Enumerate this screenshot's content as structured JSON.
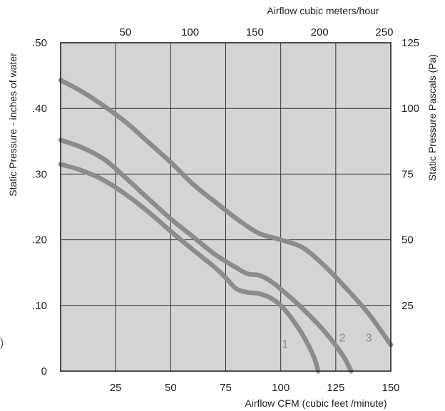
{
  "chart_data": {
    "type": "line",
    "title": "",
    "xlabel": "Airflow  CFM (cubic feet /minute)",
    "x2label": "Airflow cubic meters/hour",
    "ylabel": "Static Pressure - inches of water",
    "y2label": "Static Pressure Pascals (Pa)",
    "xlim": [
      0,
      150
    ],
    "ylim": [
      0,
      0.5
    ],
    "x2lim": [
      0,
      255
    ],
    "y2lim": [
      0,
      125
    ],
    "x_ticks": [
      "25",
      "50",
      "75",
      "100",
      "125",
      "150"
    ],
    "x_tick_values": [
      25,
      50,
      75,
      100,
      125,
      150
    ],
    "y_ticks": [
      "0",
      ".10",
      ".20",
      ".30",
      ".40",
      ".50"
    ],
    "y_tick_values": [
      0,
      0.1,
      0.2,
      0.3,
      0.4,
      0.5
    ],
    "x2_ticks": [
      "50",
      "100",
      "150",
      "200",
      "250"
    ],
    "x2_tick_values": [
      50,
      100,
      150,
      200,
      250
    ],
    "y2_ticks": [
      "25",
      "50",
      "75",
      "100",
      "125"
    ],
    "y2_tick_values": [
      25,
      50,
      75,
      100,
      125
    ],
    "grid": true,
    "background_color": "#d4d4d4",
    "line_color": "#8c8c8c",
    "series": [
      {
        "label": "1",
        "label_pos": [
          102,
          0.035
        ],
        "x": [
          0,
          10,
          20,
          30,
          40,
          50,
          60,
          70,
          75,
          80,
          85,
          90,
          95,
          100,
          105,
          110,
          115,
          117
        ],
        "y": [
          0.315,
          0.305,
          0.29,
          0.268,
          0.242,
          0.213,
          0.185,
          0.158,
          0.142,
          0.125,
          0.12,
          0.118,
          0.112,
          0.1,
          0.08,
          0.055,
          0.022,
          0
        ]
      },
      {
        "label": "2",
        "label_pos": [
          128,
          0.045
        ],
        "x": [
          0,
          10,
          20,
          30,
          40,
          50,
          60,
          70,
          80,
          85,
          90,
          95,
          100,
          110,
          120,
          128,
          132
        ],
        "y": [
          0.352,
          0.34,
          0.322,
          0.293,
          0.262,
          0.232,
          0.205,
          0.178,
          0.157,
          0.148,
          0.146,
          0.138,
          0.125,
          0.095,
          0.06,
          0.025,
          0
        ]
      },
      {
        "label": "3",
        "label_pos": [
          140,
          0.045
        ],
        "x": [
          0,
          10,
          20,
          30,
          40,
          50,
          60,
          70,
          80,
          90,
          100,
          110,
          120,
          130,
          140,
          150
        ],
        "y": [
          0.443,
          0.425,
          0.403,
          0.378,
          0.348,
          0.318,
          0.285,
          0.258,
          0.232,
          0.21,
          0.2,
          0.188,
          0.16,
          0.125,
          0.087,
          0.04
        ]
      }
    ]
  },
  "stray_mark": ")"
}
